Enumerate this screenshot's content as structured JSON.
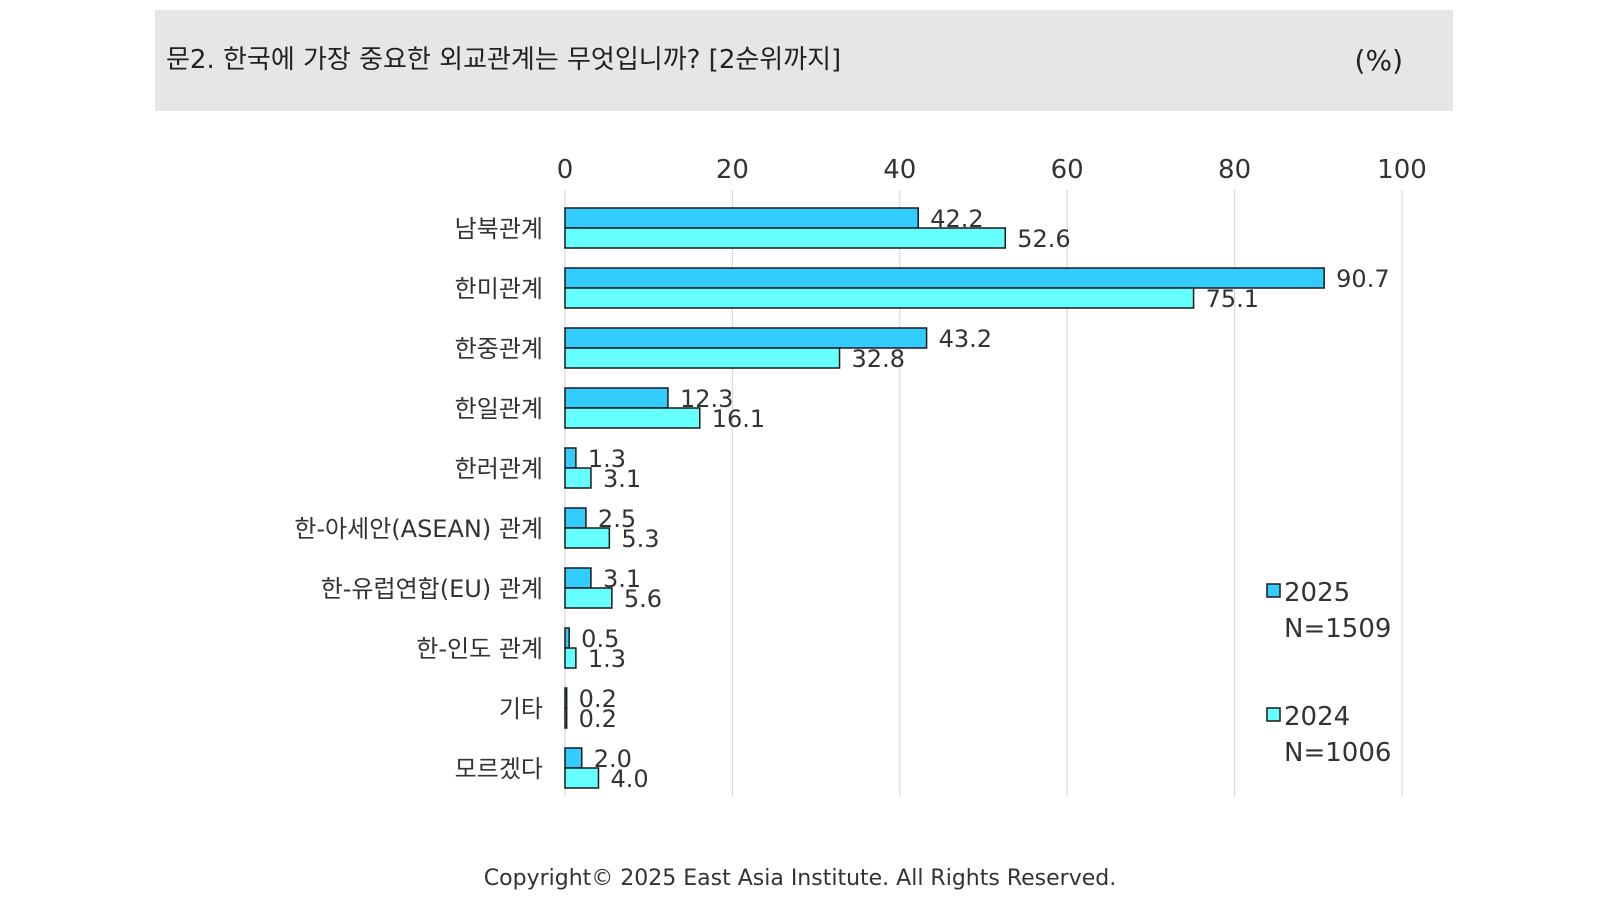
{
  "header": {
    "title": "문2. 한국에 가장 중요한 외교관계는 무엇입니까? [2순위까지]",
    "unit": "(%)"
  },
  "footer": {
    "copyright": "Copyright© 2025 East Asia Institute. All Rights Reserved."
  },
  "colors": {
    "series_2025": "#33ccff",
    "series_2024": "#66ffff",
    "bar_outline": "#1a1a1a",
    "grid": "#d9d9d9"
  },
  "chart_data": {
    "type": "bar",
    "orientation": "horizontal",
    "categories": [
      "남북관계",
      "한미관계",
      "한중관계",
      "한일관계",
      "한러관계",
      "한-아세안(ASEAN) 관계",
      "한-유럽연합(EU) 관계",
      "한-인도 관계",
      "기타",
      "모르겠다"
    ],
    "series": [
      {
        "name": "2025",
        "note": "N=1509",
        "values": [
          42.2,
          90.7,
          43.2,
          12.3,
          1.3,
          2.5,
          3.1,
          0.5,
          0.2,
          2.0
        ]
      },
      {
        "name": "2024",
        "note": "N=1006",
        "values": [
          52.6,
          75.1,
          32.8,
          16.1,
          3.1,
          5.3,
          5.6,
          1.3,
          0.2,
          4.0
        ]
      }
    ],
    "xlim": [
      0,
      100
    ],
    "xticks": [
      "0",
      "20",
      "40",
      "60",
      "80",
      "100"
    ],
    "grid": true,
    "legend_position": "right"
  }
}
